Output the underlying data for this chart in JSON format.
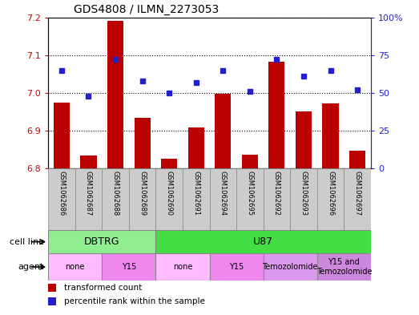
{
  "title": "GDS4808 / ILMN_2273053",
  "samples": [
    "GSM1062686",
    "GSM1062687",
    "GSM1062688",
    "GSM1062689",
    "GSM1062690",
    "GSM1062691",
    "GSM1062694",
    "GSM1062695",
    "GSM1062692",
    "GSM1062693",
    "GSM1062696",
    "GSM1062697"
  ],
  "transformed_count": [
    6.975,
    6.835,
    7.19,
    6.935,
    6.825,
    6.908,
    6.997,
    6.837,
    7.083,
    6.952,
    6.972,
    6.847
  ],
  "percentile_rank": [
    65,
    48,
    72,
    58,
    50,
    57,
    65,
    51,
    72,
    61,
    65,
    52
  ],
  "ylim_left": [
    6.8,
    7.2
  ],
  "ylim_right": [
    0,
    100
  ],
  "yticks_left": [
    6.8,
    6.9,
    7.0,
    7.1,
    7.2
  ],
  "yticks_right": [
    0,
    25,
    50,
    75,
    100
  ],
  "bar_color": "#bb0000",
  "dot_color": "#2222cc",
  "cell_line_groups": [
    {
      "label": "DBTRG",
      "start": 0,
      "end": 3,
      "color": "#90ee90"
    },
    {
      "label": "U87",
      "start": 4,
      "end": 11,
      "color": "#44dd44"
    }
  ],
  "agent_groups": [
    {
      "label": "none",
      "start": 0,
      "end": 1,
      "color": "#ffbbff"
    },
    {
      "label": "Y15",
      "start": 2,
      "end": 3,
      "color": "#ee88ee"
    },
    {
      "label": "none",
      "start": 4,
      "end": 5,
      "color": "#ffbbff"
    },
    {
      "label": "Y15",
      "start": 6,
      "end": 7,
      "color": "#ee88ee"
    },
    {
      "label": "Temozolomide",
      "start": 8,
      "end": 9,
      "color": "#dd99ee"
    },
    {
      "label": "Y15 and\nTemozolomide",
      "start": 10,
      "end": 11,
      "color": "#cc88dd"
    }
  ],
  "legend_items": [
    {
      "label": "transformed count",
      "color": "#bb0000"
    },
    {
      "label": "percentile rank within the sample",
      "color": "#2222cc"
    }
  ],
  "cell_line_row_label": "cell line",
  "agent_row_label": "agent",
  "bar_width": 0.6
}
